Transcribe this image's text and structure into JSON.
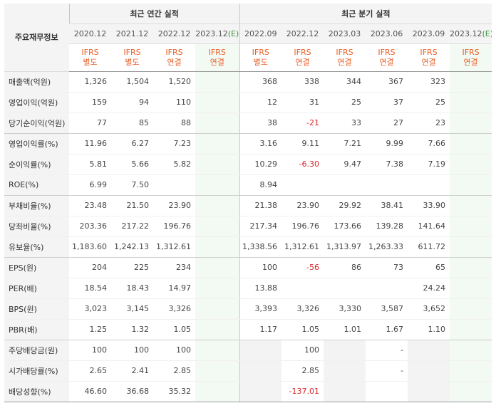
{
  "header": {
    "label": "주요재무정보",
    "annual_title": "최근 연간 실적",
    "quarter_title": "최근 분기 실적"
  },
  "periods": [
    {
      "year": "2020.12",
      "ifrs": "IFRS",
      "basis": "별도",
      "estimate": false
    },
    {
      "year": "2021.12",
      "ifrs": "IFRS",
      "basis": "별도",
      "estimate": false
    },
    {
      "year": "2022.12",
      "ifrs": "IFRS",
      "basis": "연결",
      "estimate": false
    },
    {
      "year": "2023.12(E)",
      "ifrs": "IFRS",
      "basis": "연결",
      "estimate": true
    },
    {
      "year": "2022.09",
      "ifrs": "IFRS",
      "basis": "별도",
      "estimate": false
    },
    {
      "year": "2022.12",
      "ifrs": "IFRS",
      "basis": "연결",
      "estimate": false
    },
    {
      "year": "2023.03",
      "ifrs": "IFRS",
      "basis": "연결",
      "estimate": false
    },
    {
      "year": "2023.06",
      "ifrs": "IFRS",
      "basis": "연결",
      "estimate": false
    },
    {
      "year": "2023.09",
      "ifrs": "IFRS",
      "basis": "연결",
      "estimate": false
    },
    {
      "year": "2023.12(E)",
      "ifrs": "IFRS",
      "basis": "연결",
      "estimate": true
    }
  ],
  "rows": [
    {
      "label": "매출액(억원)",
      "values": [
        "1,326",
        "1,504",
        "1,520",
        "",
        "368",
        "338",
        "344",
        "367",
        "323",
        ""
      ],
      "group_end": false
    },
    {
      "label": "영업이익(억원)",
      "values": [
        "159",
        "94",
        "110",
        "",
        "12",
        "31",
        "25",
        "37",
        "25",
        ""
      ],
      "group_end": false
    },
    {
      "label": "당기순이익(억원)",
      "values": [
        "77",
        "85",
        "88",
        "",
        "38",
        "-21",
        "33",
        "27",
        "23",
        ""
      ],
      "group_end": true
    },
    {
      "label": "영업이익률(%)",
      "values": [
        "11.96",
        "6.27",
        "7.23",
        "",
        "3.16",
        "9.11",
        "7.21",
        "9.99",
        "7.66",
        ""
      ],
      "group_end": false
    },
    {
      "label": "순이익률(%)",
      "values": [
        "5.81",
        "5.66",
        "5.82",
        "",
        "10.29",
        "-6.30",
        "9.47",
        "7.38",
        "7.19",
        ""
      ],
      "group_end": false
    },
    {
      "label": "ROE(%)",
      "values": [
        "6.99",
        "7.50",
        "",
        "",
        "8.94",
        "",
        "",
        "",
        "",
        ""
      ],
      "group_end": true
    },
    {
      "label": "부채비율(%)",
      "values": [
        "23.48",
        "21.50",
        "23.90",
        "",
        "21.38",
        "23.90",
        "29.92",
        "38.41",
        "33.90",
        ""
      ],
      "group_end": false
    },
    {
      "label": "당좌비율(%)",
      "values": [
        "203.36",
        "217.22",
        "196.76",
        "",
        "217.34",
        "196.76",
        "173.66",
        "139.28",
        "141.64",
        ""
      ],
      "group_end": false
    },
    {
      "label": "유보율(%)",
      "values": [
        "1,183.60",
        "1,242.13",
        "1,312.61",
        "",
        "1,338.56",
        "1,312.61",
        "1,313.97",
        "1,263.33",
        "611.72",
        ""
      ],
      "group_end": true
    },
    {
      "label": "EPS(원)",
      "values": [
        "204",
        "225",
        "234",
        "",
        "100",
        "-56",
        "86",
        "73",
        "65",
        ""
      ],
      "group_end": false
    },
    {
      "label": "PER(배)",
      "values": [
        "18.54",
        "18.43",
        "14.97",
        "",
        "13.88",
        "",
        "",
        "",
        "24.24",
        ""
      ],
      "group_end": false
    },
    {
      "label": "BPS(원)",
      "values": [
        "3,023",
        "3,145",
        "3,326",
        "",
        "3,393",
        "3,326",
        "3,330",
        "3,587",
        "3,652",
        ""
      ],
      "group_end": false
    },
    {
      "label": "PBR(배)",
      "values": [
        "1.25",
        "1.32",
        "1.05",
        "",
        "1.17",
        "1.05",
        "1.01",
        "1.67",
        "1.10",
        ""
      ],
      "group_end": true
    },
    {
      "label": "주당배당금(원)",
      "values": [
        "100",
        "100",
        "100",
        "",
        "",
        "100",
        "",
        "-",
        "",
        ""
      ],
      "group_end": false,
      "gray_cols": [
        4,
        6,
        8
      ]
    },
    {
      "label": "시가배당률(%)",
      "values": [
        "2.65",
        "2.41",
        "2.85",
        "",
        "",
        "2.85",
        "",
        "-",
        "",
        ""
      ],
      "group_end": false,
      "gray_cols": [
        4,
        6,
        8
      ]
    },
    {
      "label": "배당성향(%)",
      "values": [
        "46.60",
        "36.68",
        "35.32",
        "",
        "",
        "-137.01",
        "",
        "",
        "",
        ""
      ],
      "group_end": true,
      "gray_cols": [
        4,
        6,
        8
      ]
    }
  ]
}
